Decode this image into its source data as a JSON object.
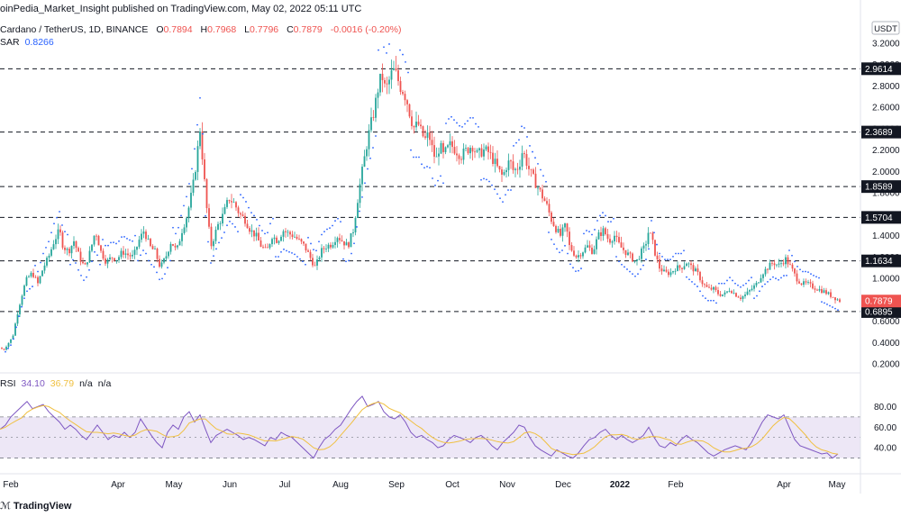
{
  "header": {
    "publish_line": "oinPedia_Market_Insight published on TradingView.com, May 02, 2022 05:11 UTC"
  },
  "legend": {
    "symbol": "Cardano / TetherUS, 1D, BINANCE",
    "o_label": "O",
    "o_value": "0.7894",
    "h_label": "H",
    "h_value": "0.7968",
    "l_label": "L",
    "l_value": "0.7796",
    "c_label": "C",
    "c_value": "0.7879",
    "change": "-0.0016 (-0.20%)",
    "sar_label": "SAR",
    "sar_value": "0.8266",
    "rsi_label": "RSI",
    "rsi_value": "34.10",
    "rsi_ma_value": "36.79",
    "rsi_na1": "n/a",
    "rsi_na2": "n/a"
  },
  "footer": {
    "brand": "TradingView"
  },
  "colors": {
    "up": "#26a69a",
    "down": "#ef5350",
    "sar": "#2962ff",
    "rsi": "#7e57c2",
    "rsi_ma": "#f0c040",
    "band": "#ede7f6"
  },
  "chart_data": {
    "type": "candlestick",
    "currency": "USDT",
    "y_ticks": [
      "3.2000",
      "3.0000",
      "2.8000",
      "2.6000",
      "2.4000",
      "2.2000",
      "2.0000",
      "1.8000",
      "1.6000",
      "1.4000",
      "1.2000",
      "1.0000",
      "0.8000",
      "0.6000",
      "0.4000",
      "0.2000"
    ],
    "ylim": [
      0.2,
      3.2
    ],
    "x_labels": [
      "Feb",
      "Apr",
      "May",
      "Jun",
      "Jul",
      "Aug",
      "Sep",
      "Oct",
      "Nov",
      "Dec",
      "2022",
      "Feb",
      "Apr",
      "May"
    ],
    "levels": [
      {
        "value": 2.9614,
        "label": "2.9614"
      },
      {
        "value": 2.3689,
        "label": "2.3689"
      },
      {
        "value": 1.8589,
        "label": "1.8589"
      },
      {
        "value": 1.5704,
        "label": "1.5704"
      },
      {
        "value": 1.1634,
        "label": "1.1634"
      },
      {
        "value": 0.6895,
        "label": "0.6895"
      }
    ],
    "last_price": {
      "value": 0.7879,
      "label": "0.7879"
    },
    "price_path": [
      [
        0,
        0.35
      ],
      [
        4,
        0.33
      ],
      [
        8,
        0.38
      ],
      [
        14,
        0.45
      ],
      [
        20,
        0.7
      ],
      [
        26,
        0.9
      ],
      [
        30,
        1.0
      ],
      [
        36,
        1.05
      ],
      [
        42,
        0.95
      ],
      [
        48,
        1.1
      ],
      [
        54,
        1.2
      ],
      [
        60,
        1.35
      ],
      [
        66,
        1.45
      ],
      [
        70,
        1.3
      ],
      [
        76,
        1.25
      ],
      [
        82,
        1.35
      ],
      [
        88,
        1.2
      ],
      [
        94,
        1.1
      ],
      [
        100,
        1.25
      ],
      [
        106,
        1.45
      ],
      [
        112,
        1.25
      ],
      [
        118,
        1.15
      ],
      [
        124,
        1.2
      ],
      [
        130,
        1.18
      ],
      [
        136,
        1.25
      ],
      [
        142,
        1.22
      ],
      [
        148,
        1.2
      ],
      [
        154,
        1.35
      ],
      [
        160,
        1.45
      ],
      [
        166,
        1.3
      ],
      [
        172,
        1.25
      ],
      [
        178,
        1.1
      ],
      [
        184,
        1.2
      ],
      [
        190,
        1.35
      ],
      [
        196,
        1.25
      ],
      [
        202,
        1.45
      ],
      [
        208,
        1.6
      ],
      [
        214,
        1.85
      ],
      [
        218,
        2.1
      ],
      [
        222,
        2.4
      ],
      [
        226,
        2.0
      ],
      [
        230,
        1.6
      ],
      [
        234,
        1.3
      ],
      [
        238,
        1.4
      ],
      [
        242,
        1.5
      ],
      [
        248,
        1.6
      ],
      [
        254,
        1.75
      ],
      [
        260,
        1.7
      ],
      [
        266,
        1.6
      ],
      [
        272,
        1.55
      ],
      [
        278,
        1.45
      ],
      [
        284,
        1.4
      ],
      [
        290,
        1.3
      ],
      [
        296,
        1.25
      ],
      [
        302,
        1.4
      ],
      [
        308,
        1.35
      ],
      [
        314,
        1.45
      ],
      [
        320,
        1.42
      ],
      [
        326,
        1.4
      ],
      [
        332,
        1.35
      ],
      [
        338,
        1.3
      ],
      [
        344,
        1.2
      ],
      [
        350,
        1.1
      ],
      [
        356,
        1.25
      ],
      [
        362,
        1.3
      ],
      [
        368,
        1.32
      ],
      [
        374,
        1.4
      ],
      [
        380,
        1.35
      ],
      [
        386,
        1.3
      ],
      [
        392,
        1.45
      ],
      [
        398,
        1.8
      ],
      [
        404,
        2.1
      ],
      [
        408,
        2.3
      ],
      [
        412,
        2.45
      ],
      [
        416,
        2.6
      ],
      [
        420,
        2.8
      ],
      [
        424,
        2.9
      ],
      [
        428,
        2.75
      ],
      [
        432,
        2.85
      ],
      [
        436,
        2.95
      ],
      [
        440,
        2.9
      ],
      [
        444,
        2.8
      ],
      [
        448,
        2.75
      ],
      [
        452,
        2.65
      ],
      [
        456,
        2.5
      ],
      [
        460,
        2.4
      ],
      [
        464,
        2.45
      ],
      [
        468,
        2.35
      ],
      [
        472,
        2.3
      ],
      [
        476,
        2.35
      ],
      [
        480,
        2.2
      ],
      [
        484,
        2.1
      ],
      [
        488,
        2.25
      ],
      [
        492,
        2.15
      ],
      [
        496,
        2.2
      ],
      [
        500,
        2.25
      ],
      [
        506,
        2.2
      ],
      [
        512,
        2.15
      ],
      [
        518,
        2.2
      ],
      [
        524,
        2.25
      ],
      [
        530,
        2.15
      ],
      [
        536,
        2.2
      ],
      [
        542,
        2.18
      ],
      [
        548,
        2.1
      ],
      [
        554,
        2.0
      ],
      [
        558,
        1.95
      ],
      [
        562,
        2.05
      ],
      [
        566,
        2.1
      ],
      [
        570,
        2.0
      ],
      [
        576,
        2.05
      ],
      [
        580,
        2.2
      ],
      [
        584,
        2.1
      ],
      [
        588,
        2.0
      ],
      [
        594,
        1.9
      ],
      [
        600,
        1.8
      ],
      [
        606,
        1.7
      ],
      [
        612,
        1.55
      ],
      [
        618,
        1.45
      ],
      [
        622,
        1.4
      ],
      [
        628,
        1.5
      ],
      [
        632,
        1.3
      ],
      [
        636,
        1.25
      ],
      [
        640,
        1.2
      ],
      [
        646,
        1.25
      ],
      [
        652,
        1.3
      ],
      [
        658,
        1.25
      ],
      [
        664,
        1.4
      ],
      [
        670,
        1.45
      ],
      [
        676,
        1.35
      ],
      [
        682,
        1.4
      ],
      [
        688,
        1.3
      ],
      [
        694,
        1.25
      ],
      [
        700,
        1.2
      ],
      [
        706,
        1.15
      ],
      [
        712,
        1.25
      ],
      [
        716,
        1.3
      ],
      [
        720,
        1.45
      ],
      [
        724,
        1.35
      ],
      [
        728,
        1.2
      ],
      [
        732,
        1.1
      ],
      [
        738,
        1.05
      ],
      [
        744,
        1.05
      ],
      [
        750,
        1.1
      ],
      [
        756,
        1.1
      ],
      [
        762,
        1.15
      ],
      [
        768,
        1.1
      ],
      [
        774,
        1.05
      ],
      [
        780,
        0.95
      ],
      [
        786,
        0.9
      ],
      [
        792,
        0.9
      ],
      [
        798,
        0.85
      ],
      [
        804,
        0.85
      ],
      [
        810,
        0.9
      ],
      [
        816,
        0.85
      ],
      [
        822,
        0.82
      ],
      [
        828,
        0.85
      ],
      [
        834,
        0.9
      ],
      [
        840,
        0.95
      ],
      [
        846,
        1.05
      ],
      [
        852,
        1.1
      ],
      [
        858,
        1.15
      ],
      [
        864,
        1.12
      ],
      [
        868,
        1.15
      ],
      [
        872,
        1.18
      ],
      [
        878,
        1.1
      ],
      [
        884,
        1.0
      ],
      [
        890,
        0.95
      ],
      [
        896,
        0.95
      ],
      [
        902,
        0.92
      ],
      [
        908,
        0.9
      ],
      [
        914,
        0.88
      ],
      [
        920,
        0.85
      ],
      [
        926,
        0.82
      ],
      [
        932,
        0.79
      ]
    ],
    "rsi_path": [
      [
        0,
        58
      ],
      [
        6,
        62
      ],
      [
        12,
        70
      ],
      [
        18,
        75
      ],
      [
        24,
        80
      ],
      [
        30,
        85
      ],
      [
        36,
        78
      ],
      [
        42,
        80
      ],
      [
        48,
        82
      ],
      [
        54,
        75
      ],
      [
        60,
        70
      ],
      [
        66,
        65
      ],
      [
        72,
        58
      ],
      [
        78,
        62
      ],
      [
        84,
        58
      ],
      [
        90,
        52
      ],
      [
        96,
        48
      ],
      [
        102,
        55
      ],
      [
        108,
        62
      ],
      [
        114,
        55
      ],
      [
        120,
        48
      ],
      [
        126,
        52
      ],
      [
        132,
        50
      ],
      [
        138,
        55
      ],
      [
        144,
        50
      ],
      [
        150,
        55
      ],
      [
        156,
        68
      ],
      [
        162,
        60
      ],
      [
        168,
        52
      ],
      [
        174,
        45
      ],
      [
        180,
        40
      ],
      [
        186,
        55
      ],
      [
        192,
        62
      ],
      [
        198,
        58
      ],
      [
        204,
        70
      ],
      [
        210,
        75
      ],
      [
        216,
        65
      ],
      [
        222,
        72
      ],
      [
        228,
        58
      ],
      [
        234,
        45
      ],
      [
        240,
        52
      ],
      [
        246,
        55
      ],
      [
        252,
        58
      ],
      [
        258,
        55
      ],
      [
        264,
        52
      ],
      [
        270,
        48
      ],
      [
        276,
        50
      ],
      [
        282,
        48
      ],
      [
        288,
        45
      ],
      [
        294,
        42
      ],
      [
        300,
        50
      ],
      [
        306,
        48
      ],
      [
        312,
        55
      ],
      [
        318,
        52
      ],
      [
        324,
        50
      ],
      [
        330,
        45
      ],
      [
        336,
        40
      ],
      [
        342,
        35
      ],
      [
        348,
        30
      ],
      [
        354,
        40
      ],
      [
        360,
        48
      ],
      [
        366,
        52
      ],
      [
        372,
        58
      ],
      [
        378,
        62
      ],
      [
        384,
        70
      ],
      [
        390,
        78
      ],
      [
        396,
        85
      ],
      [
        402,
        90
      ],
      [
        408,
        80
      ],
      [
        414,
        82
      ],
      [
        420,
        85
      ],
      [
        426,
        75
      ],
      [
        432,
        70
      ],
      [
        438,
        68
      ],
      [
        444,
        72
      ],
      [
        450,
        65
      ],
      [
        456,
        55
      ],
      [
        462,
        50
      ],
      [
        468,
        52
      ],
      [
        474,
        48
      ],
      [
        480,
        45
      ],
      [
        486,
        40
      ],
      [
        492,
        42
      ],
      [
        498,
        48
      ],
      [
        504,
        52
      ],
      [
        510,
        50
      ],
      [
        516,
        48
      ],
      [
        522,
        45
      ],
      [
        528,
        50
      ],
      [
        534,
        52
      ],
      [
        540,
        48
      ],
      [
        546,
        42
      ],
      [
        552,
        38
      ],
      [
        558,
        45
      ],
      [
        564,
        50
      ],
      [
        570,
        55
      ],
      [
        576,
        62
      ],
      [
        582,
        60
      ],
      [
        588,
        50
      ],
      [
        594,
        42
      ],
      [
        600,
        38
      ],
      [
        606,
        35
      ],
      [
        612,
        32
      ],
      [
        618,
        38
      ],
      [
        624,
        35
      ],
      [
        630,
        32
      ],
      [
        636,
        30
      ],
      [
        642,
        35
      ],
      [
        648,
        42
      ],
      [
        654,
        48
      ],
      [
        660,
        50
      ],
      [
        666,
        55
      ],
      [
        672,
        58
      ],
      [
        678,
        52
      ],
      [
        684,
        48
      ],
      [
        690,
        52
      ],
      [
        696,
        48
      ],
      [
        702,
        45
      ],
      [
        708,
        48
      ],
      [
        714,
        52
      ],
      [
        720,
        60
      ],
      [
        726,
        50
      ],
      [
        732,
        42
      ],
      [
        738,
        40
      ],
      [
        744,
        45
      ],
      [
        750,
        42
      ],
      [
        756,
        48
      ],
      [
        762,
        52
      ],
      [
        768,
        48
      ],
      [
        774,
        45
      ],
      [
        780,
        40
      ],
      [
        786,
        35
      ],
      [
        792,
        32
      ],
      [
        798,
        35
      ],
      [
        804,
        38
      ],
      [
        810,
        40
      ],
      [
        816,
        42
      ],
      [
        822,
        40
      ],
      [
        828,
        38
      ],
      [
        834,
        45
      ],
      [
        840,
        55
      ],
      [
        846,
        65
      ],
      [
        852,
        72
      ],
      [
        858,
        70
      ],
      [
        864,
        68
      ],
      [
        870,
        72
      ],
      [
        876,
        60
      ],
      [
        882,
        48
      ],
      [
        888,
        42
      ],
      [
        894,
        40
      ],
      [
        900,
        38
      ],
      [
        906,
        36
      ],
      [
        912,
        34
      ],
      [
        918,
        35
      ],
      [
        924,
        30
      ],
      [
        930,
        34
      ]
    ],
    "rsi_ticks": [
      "80.00",
      "60.00",
      "40.00"
    ],
    "rsi_band": [
      30,
      70
    ]
  }
}
